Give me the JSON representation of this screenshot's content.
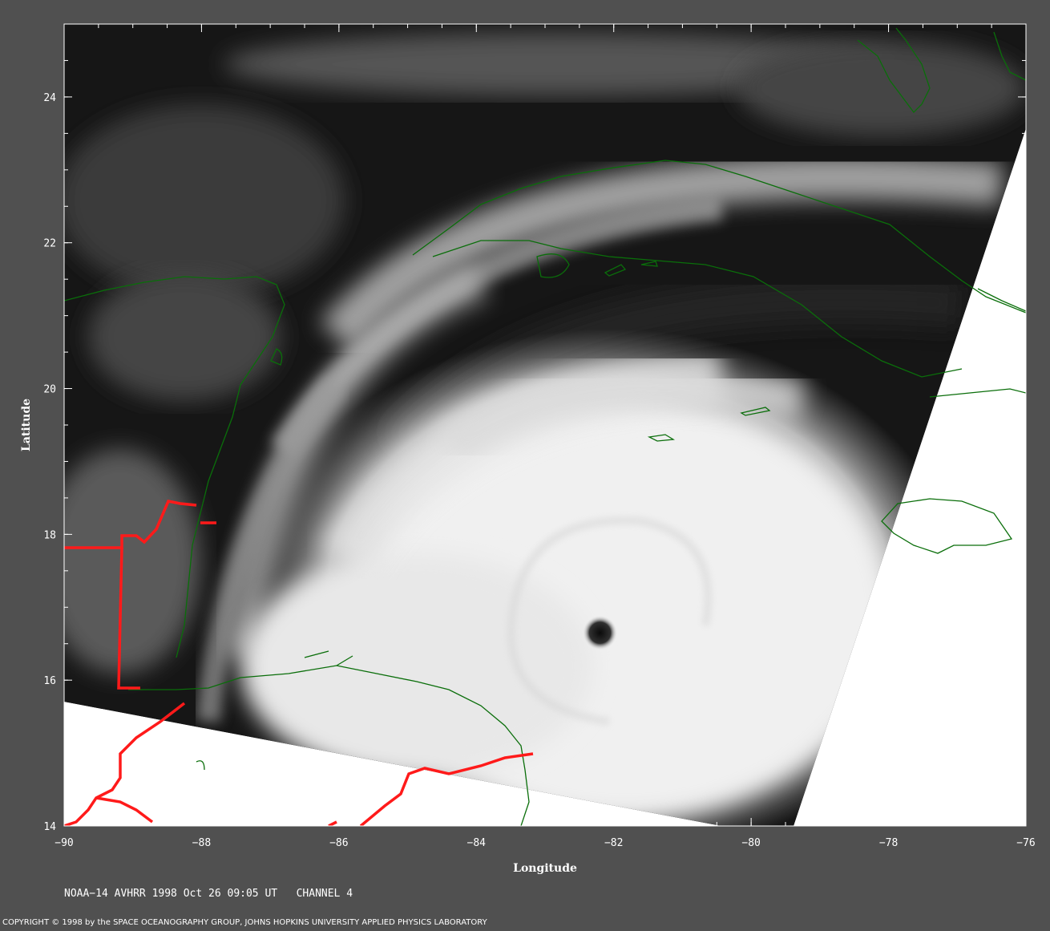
{
  "map": {
    "x_axis": {
      "label": "Longitude",
      "ticks": [
        {
          "value": -90,
          "label": "−90"
        },
        {
          "value": -88,
          "label": "−88"
        },
        {
          "value": -86,
          "label": "−86"
        },
        {
          "value": -84,
          "label": "−84"
        },
        {
          "value": -82,
          "label": "−82"
        },
        {
          "value": -80,
          "label": "−80"
        },
        {
          "value": -78,
          "label": "−78"
        },
        {
          "value": -76,
          "label": "−76"
        }
      ],
      "range": [
        -90,
        -76
      ]
    },
    "y_axis": {
      "label": "Latitude",
      "ticks": [
        {
          "value": 24,
          "label": "24"
        },
        {
          "value": 22,
          "label": "22"
        },
        {
          "value": 20,
          "label": "20"
        },
        {
          "value": 18,
          "label": "18"
        },
        {
          "value": 16,
          "label": "16"
        },
        {
          "value": 14,
          "label": "14"
        }
      ],
      "range": [
        14,
        25
      ]
    },
    "hurricane_eye": {
      "lon": -82.2,
      "lat": 16.65
    },
    "colors": {
      "background": "#505050",
      "coastline": "#0a6e0a",
      "border": "#ff1a1a",
      "no_data": "#ffffff"
    }
  },
  "caption": "NOAA−14 AVHRR 1998 Oct 26 09:05 UT   CHANNEL 4",
  "copyright": "COPYRIGHT © 1998 by the SPACE OCEANOGRAPHY GROUP, JOHNS HOPKINS UNIVERSITY APPLIED PHYSICS LABORATORY"
}
